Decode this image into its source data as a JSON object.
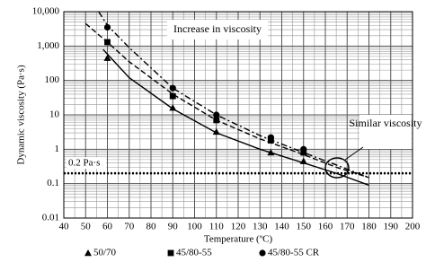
{
  "chart_data": {
    "type": "scatter",
    "x_label": "Temperature (ºC)",
    "y_label": "Dynamic viscosity (Pa·s)",
    "xlim": [
      40,
      200
    ],
    "xticks": [
      40,
      50,
      60,
      70,
      80,
      90,
      100,
      110,
      120,
      130,
      140,
      150,
      160,
      170,
      180,
      190,
      200
    ],
    "ylim": [
      0.01,
      10000
    ],
    "log_y": true,
    "yticks": [
      0.01,
      0.1,
      1,
      10,
      100,
      {
        "value": 1000,
        "label": "1,000"
      },
      {
        "value": 10000,
        "label": "10,000"
      }
    ],
    "grid": true,
    "legend": "bottom",
    "x": [
      60,
      90,
      110,
      135,
      150
    ],
    "series": [
      {
        "name": "50/70",
        "color": "#000000",
        "marker": "triangle",
        "values": [
          450,
          16,
          3.2,
          0.8,
          0.45
        ],
        "line_style": "solid",
        "fit_x": [
          58,
          70,
          90,
          110,
          130,
          150,
          165,
          180
        ],
        "fit_values": [
          800,
          120,
          15,
          3,
          1,
          0.4,
          0.2,
          0.09
        ]
      },
      {
        "name": "45/80-55",
        "color": "#000000",
        "marker": "square",
        "values": [
          1300,
          35,
          7,
          1.8,
          0.8
        ],
        "line_style": "dashed",
        "fit_x": [
          50,
          60,
          70,
          90,
          110,
          130,
          150,
          165,
          180
        ],
        "fit_values": [
          4500,
          1300,
          350,
          40,
          7,
          2,
          0.7,
          0.3,
          0.15
        ]
      },
      {
        "name": "45/80-55 CR",
        "color": "#000000",
        "marker": "circle",
        "values": [
          3500,
          60,
          10,
          2.2,
          1.0
        ],
        "line_style": "dashdot",
        "fit_x": [
          56,
          60,
          70,
          90,
          110,
          130,
          150,
          165,
          180
        ],
        "fit_values": [
          10000,
          4000,
          900,
          60,
          10,
          2.5,
          0.8,
          0.35,
          0.15
        ]
      }
    ],
    "reference_line": {
      "value": 0.2,
      "label": "0.2 Pa·s"
    },
    "annotations": [
      "Increase in viscosity",
      "Similar viscosity"
    ]
  }
}
